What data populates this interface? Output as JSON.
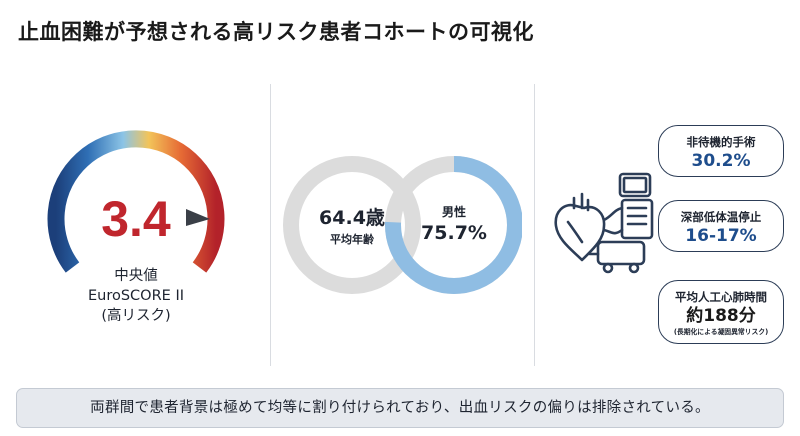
{
  "title": "止血困難が予想される高リスク患者コホートの可視化",
  "gauge": {
    "value": "3.4",
    "label_line1": "中央値",
    "label_line2": "EuroSCORE II",
    "label_line3": "(高リスク)"
  },
  "rings": {
    "age_value": "64.4歳",
    "age_label": "平均年齢",
    "male_label": "男性",
    "male_value": "75.7%",
    "male_fraction": 0.757
  },
  "stats": [
    {
      "label": "非待機的手術",
      "value": "30.2%"
    },
    {
      "label": "深部低体温停止",
      "value": "16-17%"
    },
    {
      "label": "平均人工心肺時間",
      "value": "約188分",
      "note": "(長期化による凝固異常リスク)"
    }
  ],
  "footer": "両群間で患者背景は極めて均等に割り付けられており、出血リスクの偏りは排除されている。"
}
